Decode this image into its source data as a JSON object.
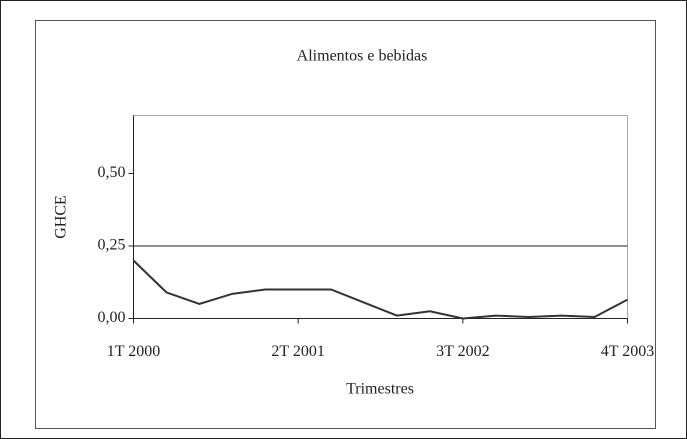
{
  "chart_data": {
    "type": "line",
    "title": "Alimentos e bebidas",
    "xlabel": "Trimestres",
    "ylabel": "GHCE",
    "categories": [
      "1T 2000",
      null,
      null,
      null,
      null,
      "2T 2001",
      null,
      null,
      null,
      null,
      "3T 2002",
      null,
      null,
      null,
      null,
      "4T 2003"
    ],
    "series": [
      {
        "name": "GHCE",
        "color": "#333333",
        "values": [
          0.2,
          0.09,
          0.05,
          0.085,
          0.1,
          0.1,
          0.1,
          0.055,
          0.01,
          0.025,
          0.0,
          0.01,
          0.005,
          0.01,
          0.005,
          0.065
        ]
      }
    ],
    "ylim": [
      0,
      0.7
    ],
    "yticks": [
      {
        "value": 0,
        "label": "0,00"
      },
      {
        "value": 0.25,
        "label": "0,25"
      },
      {
        "value": 0.5,
        "label": "0,50"
      }
    ],
    "reference_line": 0.25
  }
}
